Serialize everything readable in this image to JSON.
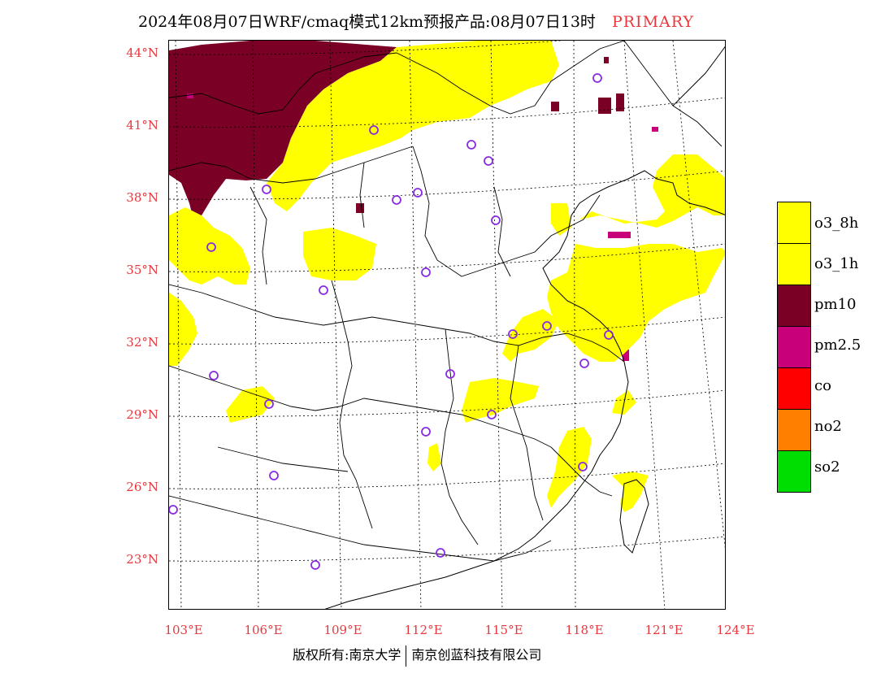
{
  "title": "2024年08月07日WRF/cmaq模式12km预报产品:08月07日13时",
  "title_tag": "PRIMARY",
  "lat_labels": [
    "44°N",
    "41°N",
    "38°N",
    "35°N",
    "32°N",
    "29°N",
    "26°N",
    "23°N"
  ],
  "lon_labels": [
    "103°E",
    "106°E",
    "109°E",
    "112°E",
    "115°E",
    "118°E",
    "121°E",
    "124°E"
  ],
  "legend": [
    {
      "label": "o3_8h",
      "color": "#ffff00"
    },
    {
      "label": "o3_1h",
      "color": "#ffff00"
    },
    {
      "label": "pm10",
      "color": "#7a0026"
    },
    {
      "label": "pm2.5",
      "color": "#c8007a"
    },
    {
      "label": "co",
      "color": "#ff0000"
    },
    {
      "label": "no2",
      "color": "#ff7f00"
    },
    {
      "label": "so2",
      "color": "#00dd00"
    }
  ],
  "footer_left": "版权所有:南京大学",
  "footer_right": "南京创蓝科技有限公司"
}
